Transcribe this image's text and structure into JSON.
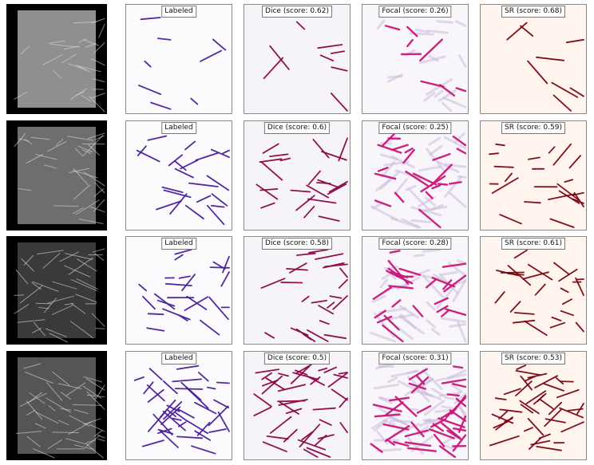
{
  "figure": {
    "rows": [
      {
        "labeled_title": "Labeled",
        "dice_title": "Dice (score: 0.62)",
        "focal_title": "Focal (score: 0.26)",
        "sr_title": "SR (score: 0.68)"
      },
      {
        "labeled_title": "Labeled",
        "dice_title": "Dice (score: 0.6)",
        "focal_title": "Focal (score: 0.25)",
        "sr_title": "SR (score: 0.59)"
      },
      {
        "labeled_title": "Labeled",
        "dice_title": "Dice (score: 0.58)",
        "focal_title": "Focal (score: 0.28)",
        "sr_title": "SR (score: 0.61)"
      },
      {
        "labeled_title": "Labeled",
        "dice_title": "Dice (score: 0.5)",
        "focal_title": "Focal (score: 0.31)",
        "sr_title": "SR (score: 0.53)"
      }
    ],
    "colors": {
      "photo_background": "#000000",
      "labeled_background": "#fbfbfe",
      "labeled_stroke": "#4b1d9c",
      "dice_background": "#f7f4f9",
      "dice_stroke": "#8a0644",
      "focal_background": "#f8f5fb",
      "focal_stroke": "#c9187a",
      "sr_background": "#fff5ee",
      "sr_stroke": "#7a0510",
      "panel_border": "#8a8a8a"
    }
  }
}
